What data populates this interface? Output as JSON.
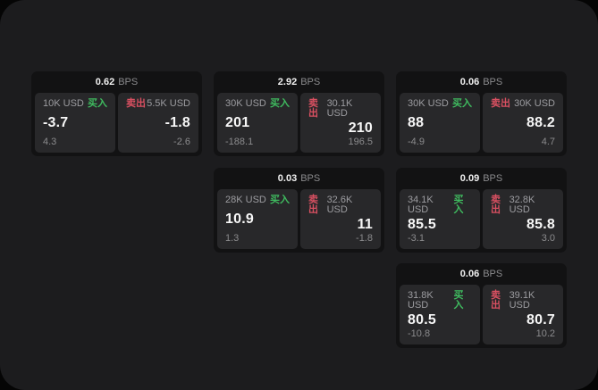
{
  "labels": {
    "bps_unit": "BPS",
    "buy": "买入",
    "sell": "卖出"
  },
  "colors": {
    "buy": "#3fbb5f",
    "sell": "#d95061",
    "surface": "#1c1c1e",
    "card": "#121213",
    "panel": "#28282a"
  },
  "cards": [
    {
      "bps": "0.62",
      "buy": {
        "amount": "10K USD",
        "price": "-3.7",
        "change": "4.3"
      },
      "sell": {
        "amount": "5.5K USD",
        "price": "-1.8",
        "change": "-2.6"
      }
    },
    {
      "bps": "2.92",
      "buy": {
        "amount": "30K USD",
        "price": "201",
        "change": "-188.1"
      },
      "sell": {
        "amount": "30.1K USD",
        "price": "210",
        "change": "196.5"
      }
    },
    {
      "bps": "0.06",
      "buy": {
        "amount": "30K USD",
        "price": "88",
        "change": "-4.9"
      },
      "sell": {
        "amount": "30K USD",
        "price": "88.2",
        "change": "4.7"
      }
    },
    {
      "bps": "0.03",
      "buy": {
        "amount": "28K USD",
        "price": "10.9",
        "change": "1.3"
      },
      "sell": {
        "amount": "32.6K USD",
        "price": "11",
        "change": "-1.8"
      }
    },
    {
      "bps": "0.09",
      "buy": {
        "amount": "34.1K USD",
        "price": "85.5",
        "change": "-3.1"
      },
      "sell": {
        "amount": "32.8K USD",
        "price": "85.8",
        "change": "3.0"
      }
    },
    {
      "bps": "0.06",
      "buy": {
        "amount": "31.8K USD",
        "price": "80.5",
        "change": "-10.8"
      },
      "sell": {
        "amount": "39.1K USD",
        "price": "80.7",
        "change": "10.2"
      }
    }
  ]
}
